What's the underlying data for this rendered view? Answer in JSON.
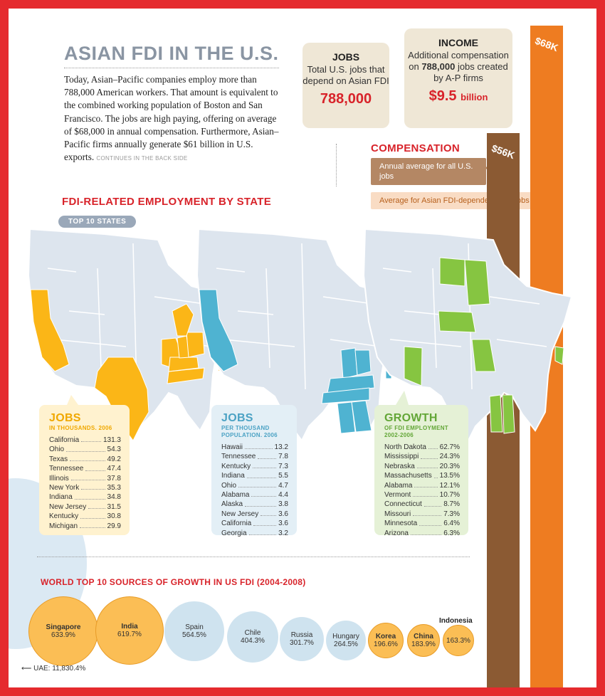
{
  "title": "ASIAN FDI IN THE U.S.",
  "intro": {
    "text": "Today, Asian–Pacific companies employ more than 788,000 American workers. That amount is equivalent to the combined working population of Boston and San Francisco. The jobs are high paying, offering on average of $68,000 in annual compensation. Furthermore, Asian–Pacific firms annually generate $61 billion in U.S. exports.",
    "more": "CONTINUES IN THE BACK SIDE"
  },
  "jobs_box": {
    "heading": "JOBS",
    "text": "Total U.S. jobs that depend on Asian FDI",
    "value": "788,000"
  },
  "income_box": {
    "heading": "INCOME",
    "text_before": "Additional compensation on",
    "bold": "788,000",
    "text_after": "jobs created by A-P firms",
    "value": "$9.5",
    "unit": "billion"
  },
  "compensation": {
    "heading": "COMPENSATION",
    "all_label": "Annual average for all U.S. jobs",
    "asian_label": "Average for Asian FDI-dependent U.S. jobs",
    "all_value": "$56K",
    "asian_value": "$68K",
    "colors": {
      "all": "#8b5a33",
      "asian": "#ee7c21"
    }
  },
  "map_section": {
    "heading": "FDI-RELATED EMPLOYMENT BY STATE",
    "badge": "TOP 10 STATES"
  },
  "tables": [
    {
      "heading": "JOBS",
      "subtitle": "IN THOUSANDS. 2006",
      "color": "#fbb617",
      "rows": [
        {
          "name": "California",
          "value": "131.3"
        },
        {
          "name": "Ohio",
          "value": "54.3"
        },
        {
          "name": "Texas",
          "value": "49.2"
        },
        {
          "name": "Tennessee",
          "value": "47.4"
        },
        {
          "name": "Illinois",
          "value": "37.8"
        },
        {
          "name": "New York",
          "value": "35.3"
        },
        {
          "name": "Indiana",
          "value": "34.8"
        },
        {
          "name": "New Jersey",
          "value": "31.5"
        },
        {
          "name": "Kentucky",
          "value": "30.8"
        },
        {
          "name": "Michigan",
          "value": "29.9"
        }
      ]
    },
    {
      "heading": "JOBS",
      "subtitle": "PER THOUSAND POPULATION. 2006",
      "color": "#4fb3d1",
      "rows": [
        {
          "name": "Hawaii",
          "value": "13.2"
        },
        {
          "name": "Tennessee",
          "value": "7.8"
        },
        {
          "name": "Kentucky",
          "value": "7.3"
        },
        {
          "name": "Indiana",
          "value": "5.5"
        },
        {
          "name": "Ohio",
          "value": "4.7"
        },
        {
          "name": "Alabama",
          "value": "4.4"
        },
        {
          "name": "Alaska",
          "value": "3.8"
        },
        {
          "name": "New Jersey",
          "value": "3.6"
        },
        {
          "name": "California",
          "value": "3.6"
        },
        {
          "name": "Georgia",
          "value": "3.2"
        }
      ]
    },
    {
      "heading": "GROWTH",
      "subtitle": "OF FDI EMPLOYMENT 2002-2006",
      "color": "#86c541",
      "rows": [
        {
          "name": "North Dakota",
          "value": "62.7%"
        },
        {
          "name": "Mississippi",
          "value": "24.3%"
        },
        {
          "name": "Nebraska",
          "value": "20.3%"
        },
        {
          "name": "Massachusetts",
          "value": "13.5%"
        },
        {
          "name": "Alabama",
          "value": "12.1%"
        },
        {
          "name": "Vermont",
          "value": "10.7%"
        },
        {
          "name": "Connecticut",
          "value": "8.7%"
        },
        {
          "name": "Missouri",
          "value": "7.3%"
        },
        {
          "name": "Minnesota",
          "value": "6.4%"
        },
        {
          "name": "Arizona",
          "value": "6.3%"
        }
      ]
    }
  ],
  "bubbles": {
    "heading": "WORLD TOP 10 SOURCES OF GROWTH IN US FDI (2004-2008)",
    "items": [
      {
        "name": "Singapore",
        "value": "633.9%",
        "asian": true
      },
      {
        "name": "India",
        "value": "619.7%",
        "asian": true
      },
      {
        "name": "Spain",
        "value": "564.5%",
        "asian": false
      },
      {
        "name": "Chile",
        "value": "404.3%",
        "asian": false
      },
      {
        "name": "Russia",
        "value": "301.7%",
        "asian": false
      },
      {
        "name": "Hungary",
        "value": "264.5%",
        "asian": false
      },
      {
        "name": "Korea",
        "value": "196.6%",
        "asian": true
      },
      {
        "name": "China",
        "value": "183.9%",
        "asian": true
      },
      {
        "name": "Indonesia",
        "value": "163.3%",
        "asian": true
      }
    ],
    "uae_note": "UAE: 11,830.4%",
    "colors": {
      "asian": "#fbbe55",
      "other": "#cfe3ef"
    }
  }
}
